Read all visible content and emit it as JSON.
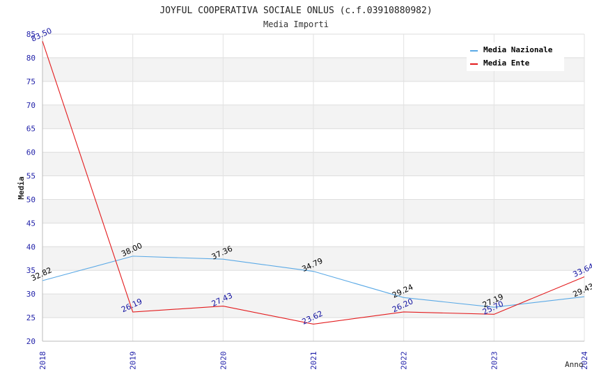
{
  "chart_data": {
    "type": "line",
    "title": "JOYFUL COOPERATIVA SOCIALE ONLUS (c.f.03910880982)",
    "subtitle": "Media Importi",
    "xlabel": "Anno",
    "ylabel": "Media",
    "ylim": [
      20,
      85
    ],
    "yticks": [
      20,
      25,
      30,
      35,
      40,
      45,
      50,
      55,
      60,
      65,
      70,
      75,
      80,
      85
    ],
    "categories": [
      "2018",
      "2019",
      "2020",
      "2021",
      "2022",
      "2023",
      "2024"
    ],
    "legend_position": "top-right",
    "series": [
      {
        "name": "Media Nazionale",
        "color": "#5aa9e6",
        "values": [
          32.82,
          38.0,
          37.36,
          34.79,
          29.24,
          27.19,
          29.43
        ],
        "labels": [
          "32.82",
          "38.00",
          "37.36",
          "34.79",
          "29.24",
          "27.19",
          "29.43"
        ],
        "label_color": "#000000"
      },
      {
        "name": "Media Ente",
        "color": "#e31a1c",
        "values": [
          83.5,
          26.19,
          27.43,
          23.62,
          26.2,
          25.7,
          33.64
        ],
        "labels": [
          "83.50",
          "26.19",
          "27.43",
          "23.62",
          "26.20",
          "25.70",
          "33.64"
        ],
        "label_color": "#1010a0"
      }
    ]
  }
}
